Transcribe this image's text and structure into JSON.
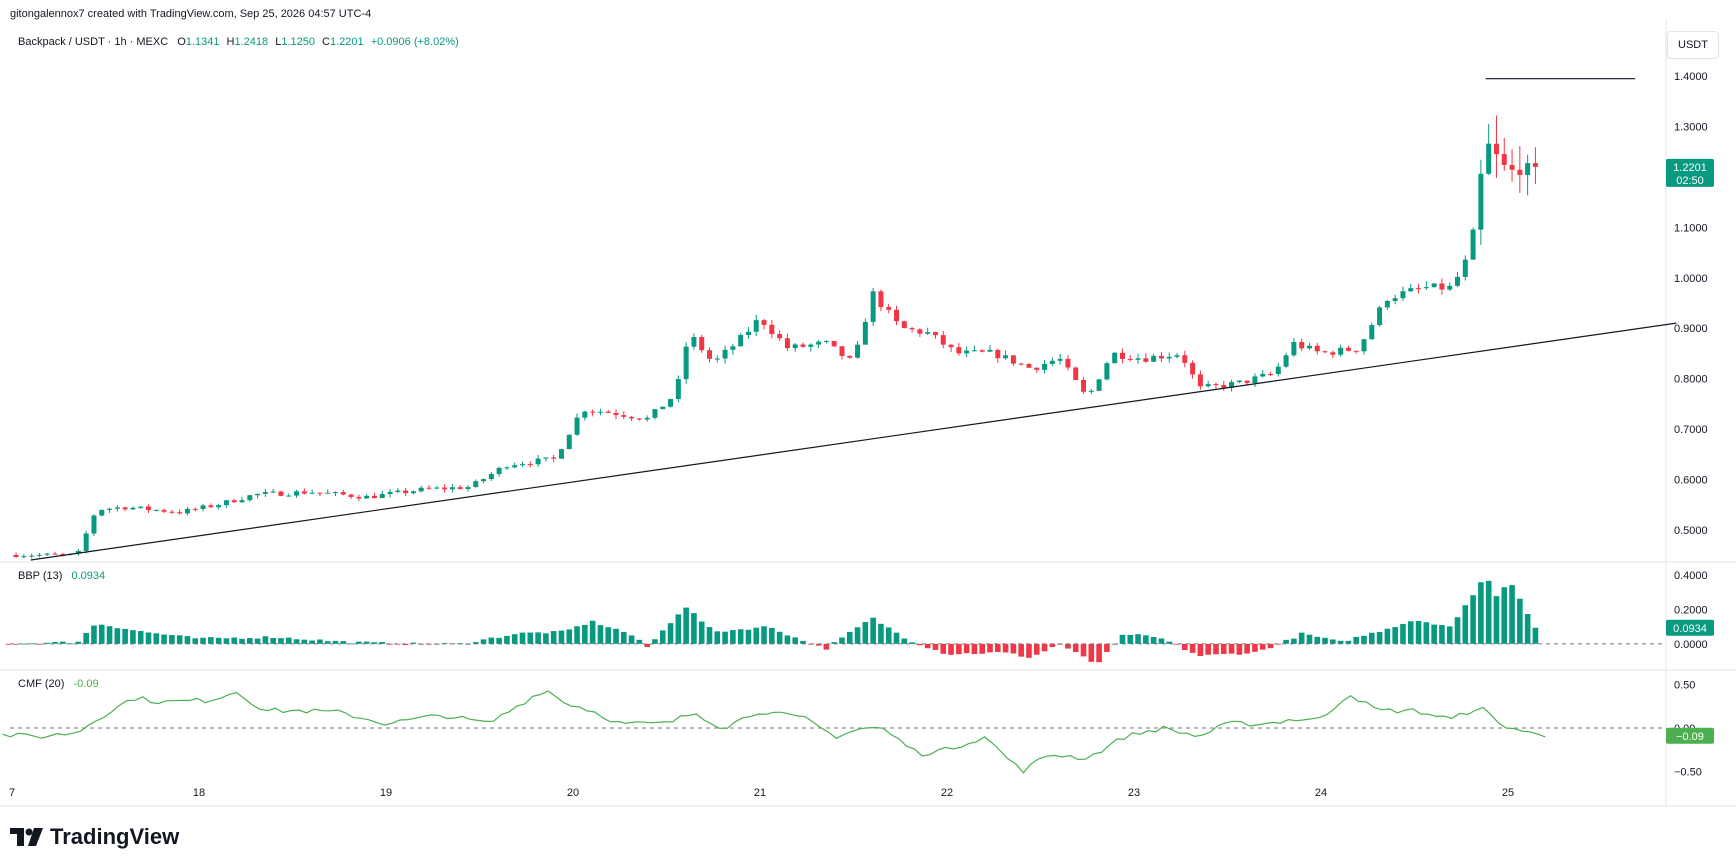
{
  "header": {
    "attribution": "gitongalennox7 created with TradingView.com, Sep 25, 2026 04:57 UTC-4"
  },
  "legend": {
    "symbol": "Backpack / USDT · 1h · MEXC",
    "o_label": "O",
    "o_value": "1.1341",
    "h_label": "H",
    "h_value": "1.2418",
    "l_label": "L",
    "l_value": "1.1250",
    "c_label": "C",
    "c_value": "1.2201",
    "change": "+0.0906 (+8.02%)"
  },
  "currency": "USDT",
  "price_tag": {
    "price": "1.2201",
    "countdown": "02:50"
  },
  "colors": {
    "up": "#089981",
    "down": "#f23645",
    "cmf": "#4caf50"
  },
  "brand": {
    "name": "TradingView"
  },
  "chart_data": [
    {
      "type": "candlestick",
      "title": "Backpack / USDT · 1h · MEXC",
      "x_ticks": [
        "7",
        "18",
        "19",
        "20",
        "21",
        "22",
        "23",
        "24",
        "25"
      ],
      "y_ticks": [
        "0.5000",
        "0.6000",
        "0.7000",
        "0.8000",
        "0.9000",
        "1.0000",
        "1.1000",
        "1.2000",
        "1.3000",
        "1.4000"
      ],
      "ylim": [
        0.44,
        1.44
      ],
      "horizontal_line": 1.395,
      "trendline": [
        [
          17.1,
          0.44
        ],
        [
          25.9,
          0.91
        ]
      ],
      "anchors": [
        [
          17.0,
          0.45
        ],
        [
          17.35,
          0.45
        ],
        [
          17.45,
          0.54
        ],
        [
          17.6,
          0.545
        ],
        [
          17.9,
          0.535
        ],
        [
          18.1,
          0.55
        ],
        [
          18.3,
          0.57
        ],
        [
          18.6,
          0.575
        ],
        [
          18.9,
          0.565
        ],
        [
          19.2,
          0.58
        ],
        [
          19.45,
          0.585
        ],
        [
          19.65,
          0.63
        ],
        [
          19.9,
          0.64
        ],
        [
          20.05,
          0.74
        ],
        [
          20.25,
          0.73
        ],
        [
          20.4,
          0.72
        ],
        [
          20.55,
          0.77
        ],
        [
          20.62,
          0.89
        ],
        [
          20.75,
          0.83
        ],
        [
          20.9,
          0.88
        ],
        [
          21.0,
          0.92
        ],
        [
          21.15,
          0.86
        ],
        [
          21.35,
          0.87
        ],
        [
          21.5,
          0.83
        ],
        [
          21.6,
          0.97
        ],
        [
          21.75,
          0.9
        ],
        [
          21.9,
          0.89
        ],
        [
          22.05,
          0.85
        ],
        [
          22.25,
          0.85
        ],
        [
          22.45,
          0.82
        ],
        [
          22.6,
          0.84
        ],
        [
          22.75,
          0.76
        ],
        [
          22.88,
          0.85
        ],
        [
          23.05,
          0.84
        ],
        [
          23.25,
          0.85
        ],
        [
          23.35,
          0.78
        ],
        [
          23.55,
          0.79
        ],
        [
          23.75,
          0.81
        ],
        [
          23.85,
          0.87
        ],
        [
          24.0,
          0.85
        ],
        [
          24.2,
          0.86
        ],
        [
          24.35,
          0.96
        ],
        [
          24.55,
          0.98
        ],
        [
          24.7,
          0.98
        ],
        [
          24.8,
          1.05
        ],
        [
          24.88,
          1.27
        ],
        [
          25.0,
          1.21
        ],
        [
          25.15,
          1.22
        ]
      ],
      "last_close": 1.2201
    },
    {
      "type": "bar",
      "title": "BBP (13)",
      "value": "0.0934",
      "y_ticks": [
        "0.0000",
        "0.2000",
        "0.4000"
      ],
      "ylim": [
        -0.14,
        0.44
      ],
      "anchors": [
        [
          17.0,
          0.0
        ],
        [
          17.35,
          0.01
        ],
        [
          17.45,
          0.12
        ],
        [
          17.7,
          0.07
        ],
        [
          18.0,
          0.03
        ],
        [
          18.4,
          0.04
        ],
        [
          18.8,
          0.01
        ],
        [
          19.1,
          0.0
        ],
        [
          19.4,
          0.0
        ],
        [
          19.7,
          0.06
        ],
        [
          19.95,
          0.07
        ],
        [
          20.1,
          0.13
        ],
        [
          20.3,
          0.06
        ],
        [
          20.4,
          -0.02
        ],
        [
          20.6,
          0.22
        ],
        [
          20.75,
          0.07
        ],
        [
          21.05,
          0.1
        ],
        [
          21.2,
          0.03
        ],
        [
          21.35,
          -0.03
        ],
        [
          21.6,
          0.15
        ],
        [
          21.8,
          0.02
        ],
        [
          22.0,
          -0.06
        ],
        [
          22.3,
          -0.05
        ],
        [
          22.45,
          -0.08
        ],
        [
          22.6,
          0.0
        ],
        [
          22.8,
          -0.12
        ],
        [
          22.95,
          0.06
        ],
        [
          23.15,
          0.03
        ],
        [
          23.35,
          -0.07
        ],
        [
          23.65,
          -0.05
        ],
        [
          23.8,
          0.01
        ],
        [
          23.9,
          0.06
        ],
        [
          24.1,
          0.01
        ],
        [
          24.3,
          0.07
        ],
        [
          24.5,
          0.14
        ],
        [
          24.7,
          0.1
        ],
        [
          24.88,
          0.4
        ],
        [
          24.95,
          0.25
        ],
        [
          25.0,
          0.39
        ],
        [
          25.15,
          0.09
        ]
      ]
    },
    {
      "type": "line",
      "title": "CMF (20)",
      "value": "-0.09",
      "y_ticks": [
        "-0.50",
        "0.00",
        "0.50"
      ],
      "ylim": [
        -0.6,
        0.6
      ],
      "series": [
        {
          "values": [
            [
              16.95,
              -0.08
            ],
            [
              17.15,
              -0.1
            ],
            [
              17.35,
              -0.05
            ],
            [
              17.45,
              0.1
            ],
            [
              17.65,
              0.35
            ],
            [
              17.8,
              0.3
            ],
            [
              18.05,
              0.32
            ],
            [
              18.2,
              0.42
            ],
            [
              18.35,
              0.2
            ],
            [
              18.55,
              0.2
            ],
            [
              18.75,
              0.18
            ],
            [
              19.0,
              0.05
            ],
            [
              19.3,
              0.15
            ],
            [
              19.55,
              0.05
            ],
            [
              19.7,
              0.25
            ],
            [
              19.85,
              0.45
            ],
            [
              19.95,
              0.3
            ],
            [
              20.1,
              0.2
            ],
            [
              20.25,
              0.05
            ],
            [
              20.5,
              0.05
            ],
            [
              20.65,
              0.18
            ],
            [
              20.8,
              0.0
            ],
            [
              21.0,
              0.2
            ],
            [
              21.25,
              0.1
            ],
            [
              21.4,
              -0.1
            ],
            [
              21.55,
              0.0
            ],
            [
              21.65,
              0.0
            ],
            [
              21.85,
              -0.3
            ],
            [
              22.0,
              -0.25
            ],
            [
              22.2,
              -0.1
            ],
            [
              22.4,
              -0.5
            ],
            [
              22.55,
              -0.3
            ],
            [
              22.75,
              -0.35
            ],
            [
              22.95,
              -0.1
            ],
            [
              23.15,
              0.0
            ],
            [
              23.35,
              -0.1
            ],
            [
              23.5,
              0.05
            ],
            [
              23.7,
              0.05
            ],
            [
              23.85,
              0.1
            ],
            [
              24.0,
              0.1
            ],
            [
              24.15,
              0.4
            ],
            [
              24.3,
              0.2
            ],
            [
              24.5,
              0.2
            ],
            [
              24.7,
              0.1
            ],
            [
              24.85,
              0.25
            ],
            [
              24.95,
              0.05
            ],
            [
              25.1,
              -0.05
            ],
            [
              25.18,
              -0.09
            ]
          ]
        }
      ],
      "zero_line": "dashed"
    }
  ]
}
